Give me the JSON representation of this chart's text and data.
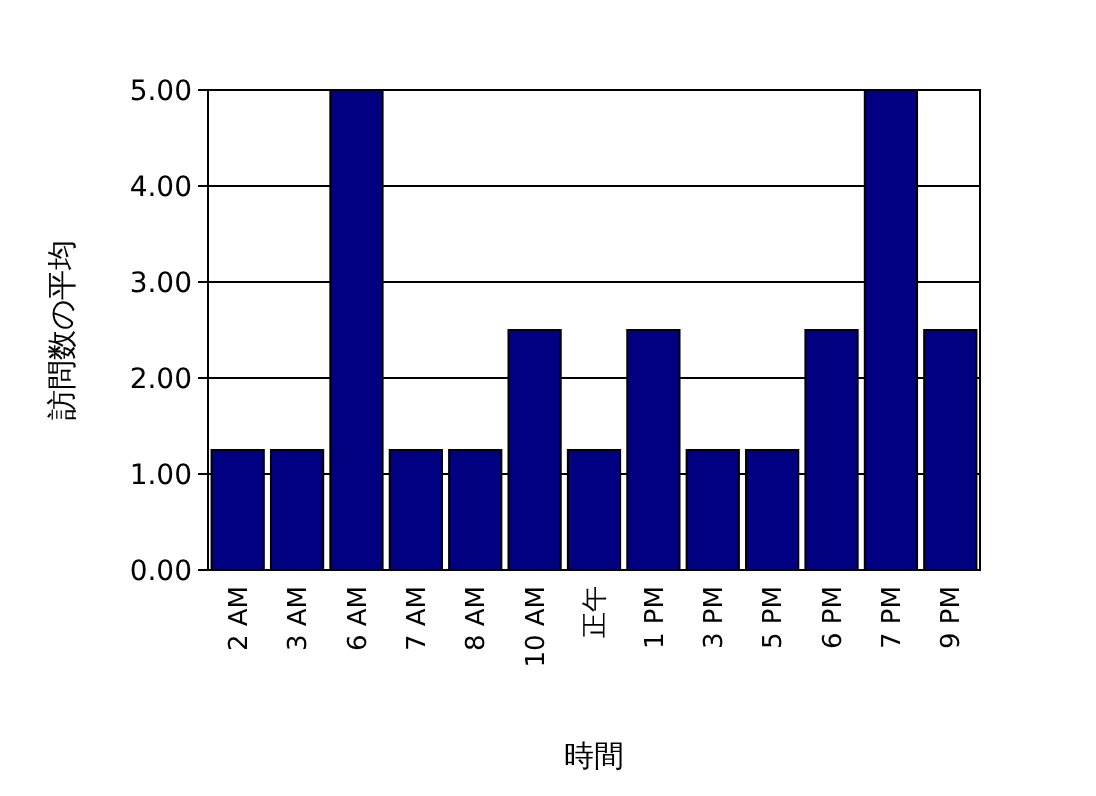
{
  "chart_data": {
    "type": "bar",
    "xlabel": "時間",
    "ylabel": "訪問数の平均",
    "categories": [
      "2 AM",
      "3 AM",
      "6 AM",
      "7 AM",
      "8 AM",
      "10 AM",
      "正午",
      "1 PM",
      "3 PM",
      "5 PM",
      "6 PM",
      "7 PM",
      "9 PM"
    ],
    "values": [
      1.25,
      1.25,
      5,
      1.25,
      1.25,
      2.5,
      1.25,
      2.5,
      1.25,
      1.25,
      2.5,
      5,
      2.5
    ],
    "color": "#000080",
    "ylim": [
      0,
      5
    ],
    "yticks": [
      {
        "value": 0,
        "label": "0.00"
      },
      {
        "value": 1,
        "label": "1.00"
      },
      {
        "value": 2,
        "label": "2.00"
      },
      {
        "value": 3,
        "label": "3.00"
      },
      {
        "value": 4,
        "label": "4.00"
      },
      {
        "value": 5,
        "label": "5.00"
      }
    ],
    "grid": "y"
  }
}
